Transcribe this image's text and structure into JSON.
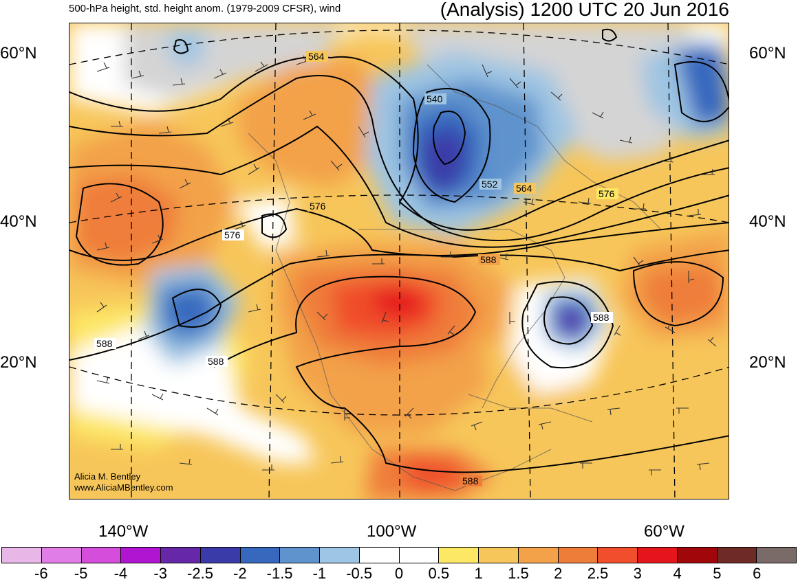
{
  "header": {
    "left_title": "500-hPa height, std. height anom. (1979-2009 CFSR), wind",
    "right_title": "(Analysis) 1200 UTC 20 Jun 2016"
  },
  "map": {
    "lat_labels": [
      "60°N",
      "40°N",
      "20°N"
    ],
    "lon_labels": [
      "140°W",
      "100°W",
      "60°W"
    ],
    "contour_labels": [
      "564",
      "540",
      "552",
      "564",
      "576",
      "576",
      "576",
      "588",
      "588",
      "588",
      "588",
      "588"
    ],
    "land_color": "#d4d4d4",
    "icons": [
      "wind-barb-icon",
      "contour-line-icon"
    ]
  },
  "credit": {
    "line1": "Alicia M. Bentley",
    "line2": "www.AliciaMBentley.com"
  },
  "colorbar": {
    "colors": [
      "#e8b7e8",
      "#e07de6",
      "#d44ddb",
      "#b016d1",
      "#6628a8",
      "#3a3ba8",
      "#3668be",
      "#5f93cd",
      "#9ec5e3",
      "#ffffff",
      "#ffffff",
      "#fde866",
      "#f7c65a",
      "#f3a24a",
      "#ef7d3a",
      "#f04e2c",
      "#e5161b",
      "#a0070b",
      "#6e2b25",
      "#7a6a68"
    ],
    "tick_labels": [
      "-6",
      "-5",
      "-4",
      "-3",
      "-2.5",
      "-2",
      "-1.5",
      "-1",
      "-0.5",
      "0",
      "0.5",
      "1",
      "1.5",
      "2",
      "2.5",
      "3",
      "4",
      "5",
      "6"
    ]
  }
}
